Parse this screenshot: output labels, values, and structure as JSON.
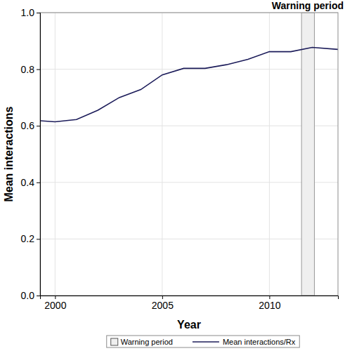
{
  "chart_data": {
    "type": "line",
    "title": "Warning period",
    "xlabel": "Year",
    "ylabel": "Mean interactions",
    "x": [
      1999.3,
      2000,
      2001,
      2002,
      2003,
      2004,
      2005,
      2006,
      2007,
      2008,
      2009,
      2010,
      2011,
      2012,
      2013.2
    ],
    "series": [
      {
        "name": "Mean interactions/Rx",
        "color": "#1c1c5a",
        "values": [
          0.618,
          0.614,
          0.622,
          0.655,
          0.7,
          0.728,
          0.78,
          0.803,
          0.803,
          0.816,
          0.835,
          0.862,
          0.862,
          0.877,
          0.87
        ]
      }
    ],
    "shaded_region": {
      "name": "Warning period",
      "x": [
        2011.5,
        2012.1
      ],
      "color": "#efefef"
    },
    "xlim": [
      1999.3,
      2013.2
    ],
    "ylim": [
      0,
      1
    ],
    "xticks": [
      2000,
      2005,
      2010
    ],
    "yticks": [
      {
        "value": 0,
        "label": "0.0"
      },
      {
        "value": 0.2,
        "label": "0.2"
      },
      {
        "value": 0.4,
        "label": "0.4"
      },
      {
        "value": 0.6,
        "label": "0.6"
      },
      {
        "value": 0.8,
        "label": "0.8"
      },
      {
        "value": 1,
        "label": "1.0"
      }
    ],
    "grid": true,
    "legend": "bottom"
  }
}
